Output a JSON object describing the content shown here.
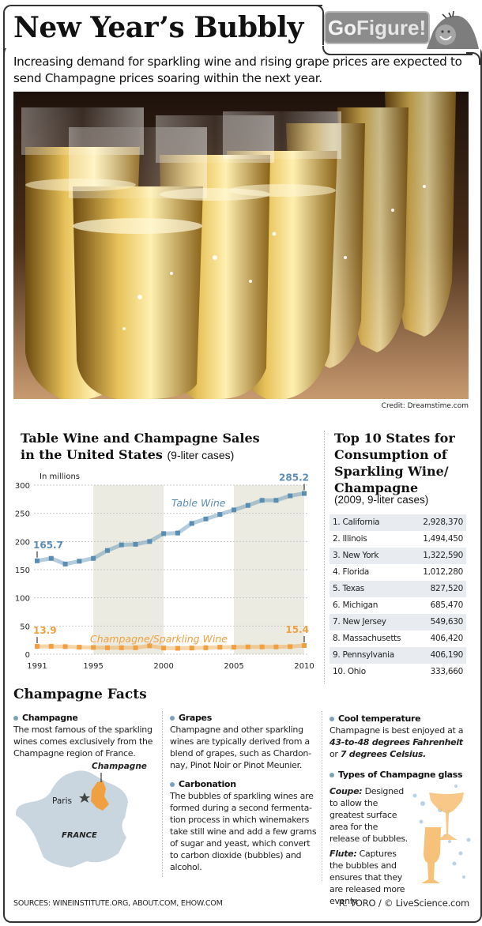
{
  "header": {
    "title": "New Year’s Bubbly",
    "badge_go": "Go",
    "badge_figure": "Figure!",
    "intro": "Increasing demand for sparkling wine and rising grape prices are expected to send Champagne prices soaring within the next year."
  },
  "photo": {
    "icon": "champagne-glasses-photo",
    "credit": "Credit: Dreamstime.com"
  },
  "chart_section": {
    "title_line1": "Table Wine and Champagne Sales",
    "title_line2": "in the United States",
    "title_unit": "(9-liter cases)",
    "units_label": "In millions"
  },
  "chart_data": {
    "type": "line",
    "title": "Table Wine and Champagne Sales in the United States (9-liter cases)",
    "xlabel": "",
    "ylabel": "In millions",
    "ylim": [
      0,
      300
    ],
    "yticks": [
      0,
      50,
      100,
      150,
      200,
      250,
      300
    ],
    "xticks": [
      1991,
      1995,
      2000,
      2005,
      2010
    ],
    "grid": true,
    "shaded_ranges": [
      [
        1995,
        2000
      ],
      [
        2005,
        2010
      ]
    ],
    "x": [
      1991,
      1992,
      1993,
      1994,
      1995,
      1996,
      1997,
      1998,
      1999,
      2000,
      2001,
      2002,
      2003,
      2004,
      2005,
      2006,
      2007,
      2008,
      2009,
      2010
    ],
    "series": [
      {
        "name": "Table Wine",
        "color": "#5b8db3",
        "values": [
          165.7,
          170,
          160,
          165,
          170,
          184,
          194,
          195,
          200,
          214,
          215,
          232,
          240,
          248,
          256,
          264,
          273,
          273,
          281,
          285.2
        ],
        "annotations": [
          {
            "x": 1991,
            "label": "165.7"
          },
          {
            "x": 2010,
            "label": "285.2"
          }
        ]
      },
      {
        "name": "Champagne/Sparkling Wine",
        "color": "#f0a040",
        "values": [
          13.9,
          13.9,
          13.5,
          12.5,
          12,
          11.5,
          11.5,
          11.5,
          14.8,
          11,
          10.5,
          11,
          11.5,
          12.5,
          12.5,
          13,
          13,
          13,
          13.5,
          15.4
        ],
        "annotations": [
          {
            "x": 1991,
            "label": "13.9"
          },
          {
            "x": 2010,
            "label": "15.4"
          }
        ]
      }
    ]
  },
  "top_states": {
    "title": "Top 10 States for Consumption of Sparkling Wine/ Champagne",
    "subtitle": "(2009, 9-liter cases)",
    "rows": [
      {
        "name": "1. California",
        "value": "2,928,370"
      },
      {
        "name": "2. Illinois",
        "value": "1,494,450"
      },
      {
        "name": "3. New York",
        "value": "1,322,590"
      },
      {
        "name": "4. Florida",
        "value": "1,012,280"
      },
      {
        "name": "5. Texas",
        "value": "827,520"
      },
      {
        "name": "6. Michigan",
        "value": "685,470"
      },
      {
        "name": "7. New Jersey",
        "value": "549,630"
      },
      {
        "name": "8. Massachusetts",
        "value": "406,420"
      },
      {
        "name": "9. Pennsylvania",
        "value": "406,190"
      },
      {
        "name": "10. Ohio",
        "value": "333,660"
      }
    ]
  },
  "facts": {
    "title": "Champagne Facts",
    "champagne": {
      "head": "Champagne",
      "body": "The most famous of the sparkling wines comes exclusively from the Champagne region of France."
    },
    "map": {
      "region_label": "Champagne",
      "city_label": "Paris",
      "country_label": "FRANCE"
    },
    "grapes": {
      "head": "Grapes",
      "body": "Champagne and other sparkling wines are typically derived from a blend of grapes, such as Chardon-nay, Pinot Noir or Pinot Meunier."
    },
    "carbonation": {
      "head": "Carbonation",
      "body": "The bubbles of sparkling wines are formed during a second fermenta-tion process in which winemakers take still wine and add a few grams of sugar and yeast, which convert to carbon dioxide (bubbles) and alcohol."
    },
    "cool_temperature": {
      "head": "Cool temperature",
      "body_pre": "Champagne is best enjoyed at a ",
      "body_em1": "43-to-48 degrees Fahrenheit",
      "body_mid": " or ",
      "body_em2": "7 degrees Celsius.",
      "body_post": ""
    },
    "glass_types": {
      "head": "Types of Champagne glass",
      "coupe_label": "Coupe:",
      "coupe_text": " Designed to allow the greatest surface area for the release of bubbles.",
      "flute_label": "Flute:",
      "flute_text": " Captures the bubbles and ensures that they are released more evenly."
    }
  },
  "footer": {
    "sources": "SOURCES: WINEINSTITUTE.ORG, ABOUT.COM, EHOW.COM",
    "credit": "R. TORO / © LiveScience.com"
  },
  "colors": {
    "table_wine": "#5b8db3",
    "champagne": "#f0a040",
    "shade": "#ecebe1",
    "map_fill": "#c9d6df",
    "row_alt": "#e8ecf0"
  }
}
